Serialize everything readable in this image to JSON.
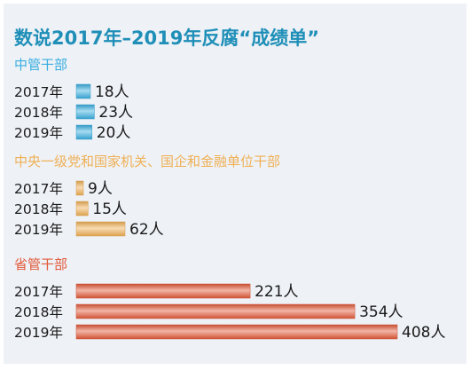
{
  "chart_data": {
    "type": "bar",
    "orientation": "horizontal",
    "title": "数说2017年–2019年反腐“成绩单”",
    "colors": {
      "title": "#1f8fb8",
      "blue": "#3aaee0",
      "orange": "#efb055",
      "red": "#e25a3a"
    },
    "groups": [
      {
        "name": "中管干部",
        "color_key": "blue",
        "rows": [
          {
            "year": "2017年",
            "value": 18,
            "label": "18人"
          },
          {
            "year": "2018年",
            "value": 23,
            "label": "23人"
          },
          {
            "year": "2019年",
            "value": 20,
            "label": "20人"
          }
        ]
      },
      {
        "name": "中央一级党和国家机关、国企和金融单位干部",
        "color_key": "orange",
        "rows": [
          {
            "year": "2017年",
            "value": 9,
            "label": "9人"
          },
          {
            "year": "2018年",
            "value": 15,
            "label": "15人"
          },
          {
            "year": "2019年",
            "value": 62,
            "label": "62人"
          }
        ]
      },
      {
        "name": "省管干部",
        "color_key": "red",
        "rows": [
          {
            "year": "2017年",
            "value": 221,
            "label": "221人"
          },
          {
            "year": "2018年",
            "value": 354,
            "label": "354人"
          },
          {
            "year": "2019年",
            "value": 408,
            "label": "408人"
          }
        ]
      }
    ]
  }
}
